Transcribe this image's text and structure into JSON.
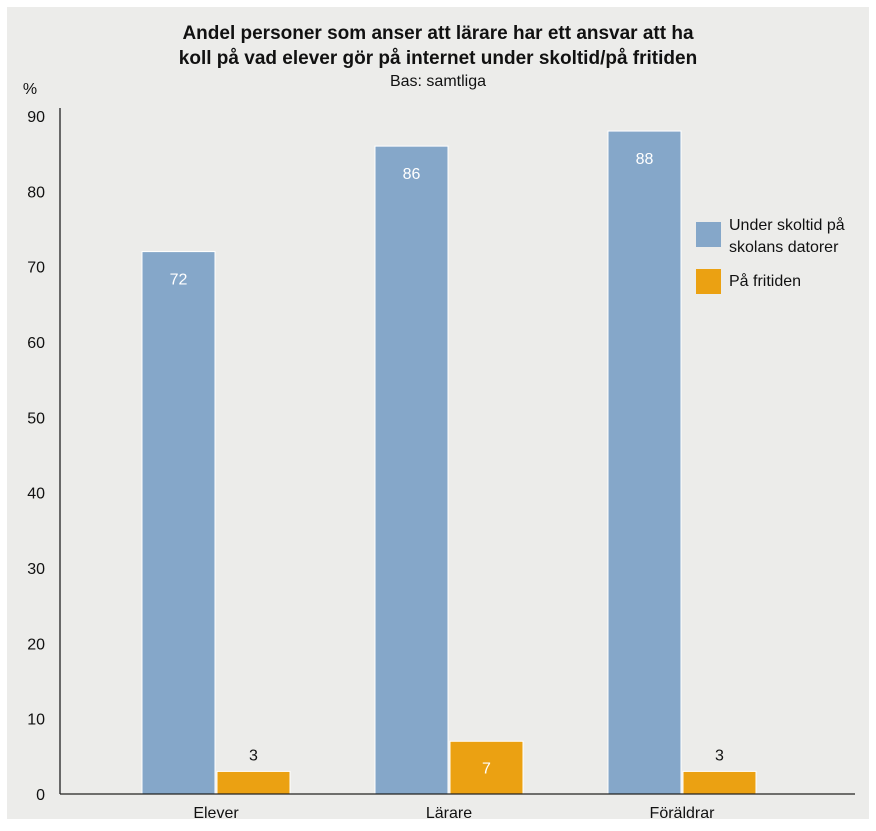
{
  "chart_data": {
    "type": "bar",
    "title": [
      "Andel personer som anser att lärare har ett ansvar att ha",
      "koll på vad elever gör på internet under skoltid/på fritiden"
    ],
    "subtitle": "Bas: samtliga",
    "ylabel": "%",
    "xlabel": "",
    "ylim": [
      0,
      90
    ],
    "yticks": [
      0,
      10,
      20,
      30,
      40,
      50,
      60,
      70,
      80,
      90
    ],
    "grid": false,
    "legend_position": "right",
    "categories": [
      "Elever",
      "Lärare",
      "Föräldrar"
    ],
    "series": [
      {
        "name": [
          "Under skoltid på",
          "skolans datorer"
        ],
        "color": "#85a7c9",
        "label_color": "#ffffff",
        "values": [
          72,
          86,
          88
        ]
      },
      {
        "name": [
          "På fritiden"
        ],
        "color": "#eba112",
        "label_color_inside": "#ffffff",
        "label_color_above": "#111111",
        "values": [
          3,
          7,
          3
        ]
      }
    ]
  }
}
